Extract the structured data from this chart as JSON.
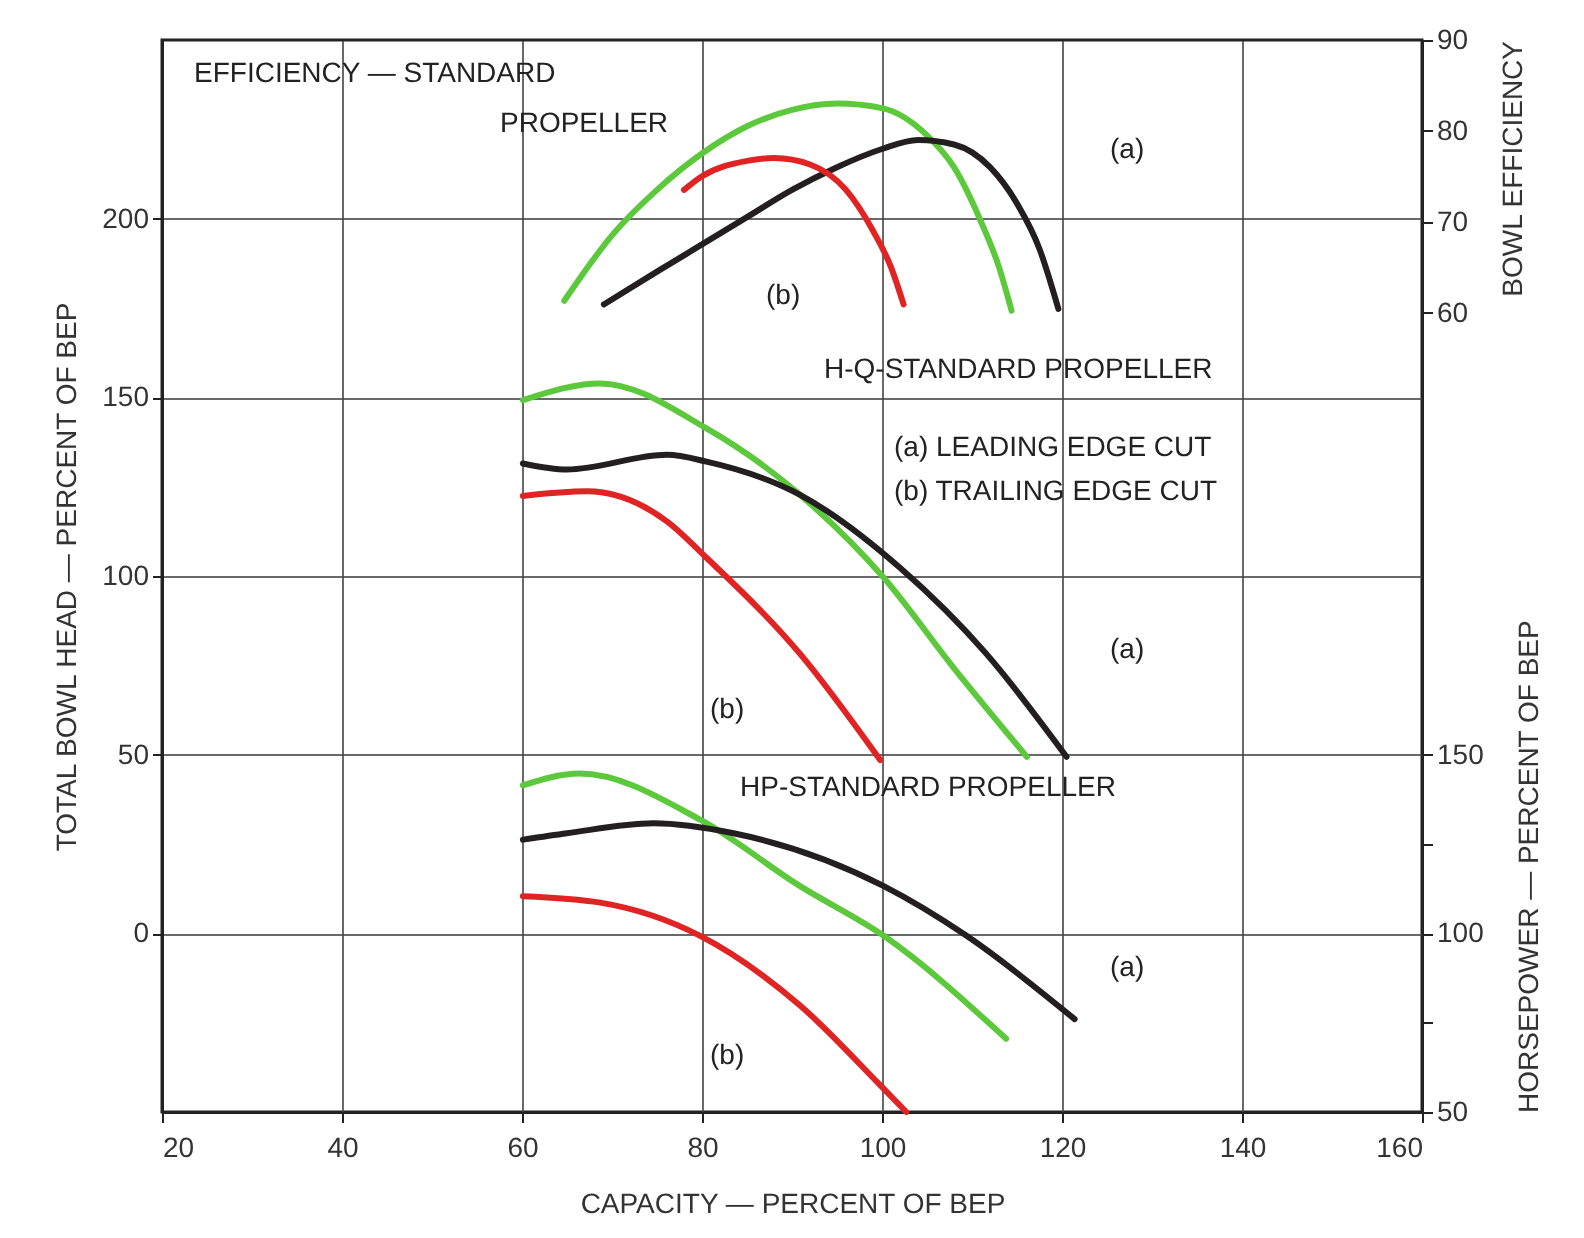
{
  "chart_data": {
    "type": "line",
    "xlabel": "CAPACITY — PERCENT OF BEP",
    "ylabel": "TOTAL BOWL HEAD — PERCENT OF BEP",
    "y2label": "BOWL EFFICIENCY",
    "y3label": "HORSEPOWER — PERCENT OF BEP",
    "xlim": [
      20,
      160
    ],
    "xticks": [
      20,
      40,
      60,
      80,
      100,
      120,
      140,
      160
    ],
    "ylim": [
      -50,
      250
    ],
    "yticks": [
      0,
      50,
      100,
      150,
      200
    ],
    "y2lim": [
      -28,
      90
    ],
    "y2ticks": [
      60,
      70,
      80,
      90
    ],
    "y3lim": [
      50,
      350
    ],
    "y3ticks": [
      50,
      {
        "value": 75,
        "label": null
      },
      100,
      {
        "value": 125,
        "label": null
      },
      150
    ],
    "grid": true,
    "series": [
      {
        "color": "#5cc83b",
        "axis": "y2",
        "x": [
          64.7,
          70,
          75,
          80,
          85,
          90,
          95,
          100,
          105,
          108,
          111,
          113,
          114.4
        ],
        "values": [
          61.3,
          68.5,
          73.5,
          77.5,
          80.5,
          82.3,
          83,
          82.5,
          79.5,
          76,
          70,
          65,
          60.2
        ]
      },
      {
        "color": "#231f20",
        "axis": "y2",
        "x": [
          69.1,
          75,
          80,
          85,
          90,
          95,
          100,
          104,
          108,
          112,
          115,
          117.5,
          119.6
        ],
        "values": [
          60.9,
          64.5,
          67.5,
          70.5,
          73.5,
          76,
          78,
          79,
          78.5,
          76,
          72,
          67,
          60.4
        ]
      },
      {
        "color": "#e02424",
        "axis": "y2",
        "x": [
          78,
          80,
          85,
          88,
          92,
          96,
          99,
          101,
          102.4
        ],
        "values": [
          73.5,
          75,
          76.7,
          77,
          76.3,
          73.5,
          69,
          65,
          60.9
        ]
      },
      {
        "color": "#5cc83b",
        "x": [
          60.1,
          68.7,
          80.5,
          90.9,
          100.2,
          107.9,
          116.1
        ],
        "values": [
          149.2,
          153.9,
          141.3,
          122.7,
          99.5,
          74.5,
          49.4
        ]
      },
      {
        "color": "#231f20",
        "x": [
          60.1,
          65,
          76.1,
          80.5,
          90.9,
          102,
          111.6,
          120.5
        ],
        "values": [
          131.5,
          129.8,
          133.9,
          132,
          122.7,
          102.3,
          78.2,
          49.4
        ]
      },
      {
        "color": "#e02424",
        "x": [
          60.1,
          67.2,
          76.1,
          80.5,
          90.9,
          99.8
        ],
        "values": [
          122.4,
          123.7,
          115.3,
          105.1,
          78.2,
          48.5
        ]
      },
      {
        "color": "#5cc83b",
        "axis": "y3",
        "x": [
          60.1,
          66.4,
          79.8,
          90.9,
          100.2,
          113.8
        ],
        "values": [
          141.4,
          144.7,
          131.8,
          113.2,
          99.3,
          70.5
        ]
      },
      {
        "color": "#231f20",
        "axis": "y3",
        "x": [
          60.1,
          65,
          74.6,
          83.5,
          100.2,
          109.4,
          121.4
        ],
        "values": [
          126.2,
          128,
          130.8,
          128,
          113.2,
          99.3,
          76
        ]
      },
      {
        "color": "#e02424",
        "axis": "y3",
        "x": [
          60.1,
          68.7,
          79.8,
          90.9,
          99.8,
          102.7
        ],
        "values": [
          110.4,
          108.6,
          99.3,
          79.8,
          57.5,
          50
        ]
      }
    ],
    "annotations": [
      "EFFICIENCY — STANDARD",
      "PROPELLER",
      "(a)",
      "(b)",
      "H-Q-STANDARD PROPELLER",
      "(a) LEADING EDGE CUT",
      "(b) TRAILING EDGE CUT",
      "(a)",
      "(b)",
      "HP-STANDARD PROPELLER",
      "(a)",
      "(b)"
    ]
  }
}
